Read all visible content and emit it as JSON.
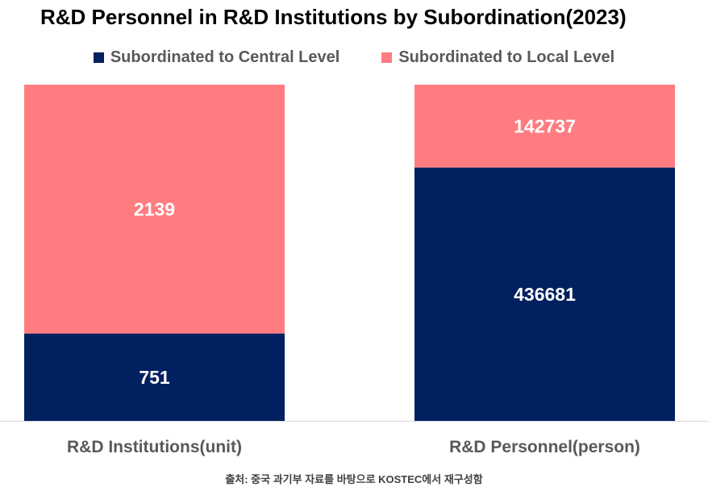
{
  "chart_data": {
    "type": "bar",
    "stacked": "percent",
    "title": "R&D Personnel in R&D Institutions by Subordination(2023)",
    "categories": [
      "R&D Institutions(unit)",
      "R&D Personnel(person)"
    ],
    "series": [
      {
        "name": "Subordinated to Central Level",
        "values": [
          751,
          436681
        ],
        "color": "#002060"
      },
      {
        "name": "Subordinated to Local Level",
        "values": [
          2139,
          142737
        ],
        "color": "#FF7C80"
      }
    ],
    "legend_position": "top",
    "grid": false
  },
  "source": "출처: 중국 과기부 자료를 바탕으로 KOSTEC에서 재구성함"
}
